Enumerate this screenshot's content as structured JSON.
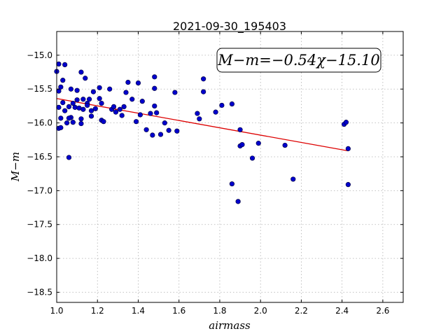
{
  "chart_data": {
    "type": "scatter",
    "title": "2021-09-30_195403",
    "xlabel": "airmass",
    "ylabel": "M−m",
    "xlim": [
      1.0,
      2.7
    ],
    "ylim": [
      -18.65,
      -14.65
    ],
    "y_inverted": true,
    "grid": true,
    "xticks": [
      1.0,
      1.2,
      1.4,
      1.6,
      1.8,
      2.0,
      2.2,
      2.4,
      2.6
    ],
    "xtick_labels": [
      "1.0",
      "1.2",
      "1.4",
      "1.6",
      "1.8",
      "2.0",
      "2.2",
      "2.4",
      "2.6"
    ],
    "yticks": [
      -15.0,
      -15.5,
      -16.0,
      -16.5,
      -17.0,
      -17.5,
      -18.0,
      -18.5
    ],
    "ytick_labels": [
      "−15.0",
      "−15.5",
      "−16.0",
      "−16.5",
      "−17.0",
      "−17.5",
      "−18.0",
      "−18.5"
    ],
    "annotation": "M−m=−0.54χ−15.10",
    "fit": {
      "slope": -0.54,
      "intercept": -15.1,
      "x_range": [
        1.0,
        2.43
      ],
      "color": "#dd0000"
    },
    "point_color": "#0000cc",
    "points": [
      [
        1.0,
        -15.24
      ],
      [
        1.01,
        -15.13
      ],
      [
        1.01,
        -15.53
      ],
      [
        1.02,
        -15.47
      ],
      [
        1.01,
        -16.08
      ],
      [
        1.02,
        -16.07
      ],
      [
        1.02,
        -15.93
      ],
      [
        1.03,
        -15.37
      ],
      [
        1.04,
        -15.14
      ],
      [
        1.03,
        -15.7
      ],
      [
        1.01,
        -15.77
      ],
      [
        1.04,
        -15.82
      ],
      [
        1.05,
        -16.0
      ],
      [
        1.06,
        -15.76
      ],
      [
        1.06,
        -16.51
      ],
      [
        1.07,
        -15.92
      ],
      [
        1.07,
        -15.5
      ],
      [
        1.08,
        -15.71
      ],
      [
        1.08,
        -15.99
      ],
      [
        1.06,
        -15.93
      ],
      [
        1.09,
        -15.77
      ],
      [
        1.1,
        -15.52
      ],
      [
        1.1,
        -15.66
      ],
      [
        1.11,
        -15.78
      ],
      [
        1.12,
        -15.94
      ],
      [
        1.12,
        -16.01
      ],
      [
        1.12,
        -15.25
      ],
      [
        1.13,
        -15.65
      ],
      [
        1.13,
        -15.8
      ],
      [
        1.14,
        -15.34
      ],
      [
        1.15,
        -15.71
      ],
      [
        1.15,
        -15.74
      ],
      [
        1.16,
        -15.65
      ],
      [
        1.17,
        -15.82
      ],
      [
        1.17,
        -15.9
      ],
      [
        1.18,
        -15.54
      ],
      [
        1.19,
        -15.79
      ],
      [
        1.21,
        -15.48
      ],
      [
        1.21,
        -15.64
      ],
      [
        1.22,
        -15.96
      ],
      [
        1.22,
        -15.71
      ],
      [
        1.23,
        -15.98
      ],
      [
        1.26,
        -15.5
      ],
      [
        1.27,
        -15.8
      ],
      [
        1.28,
        -15.76
      ],
      [
        1.29,
        -15.84
      ],
      [
        1.31,
        -15.8
      ],
      [
        1.32,
        -15.89
      ],
      [
        1.33,
        -15.76
      ],
      [
        1.34,
        -15.55
      ],
      [
        1.35,
        -15.4
      ],
      [
        1.37,
        -15.65
      ],
      [
        1.39,
        -15.98
      ],
      [
        1.4,
        -15.41
      ],
      [
        1.41,
        -15.88
      ],
      [
        1.42,
        -15.68
      ],
      [
        1.44,
        -16.1
      ],
      [
        1.46,
        -15.86
      ],
      [
        1.47,
        -16.18
      ],
      [
        1.48,
        -15.32
      ],
      [
        1.48,
        -15.49
      ],
      [
        1.48,
        -15.75
      ],
      [
        1.49,
        -15.85
      ],
      [
        1.51,
        -16.17
      ],
      [
        1.53,
        -16.0
      ],
      [
        1.55,
        -16.11
      ],
      [
        1.58,
        -15.55
      ],
      [
        1.59,
        -16.12
      ],
      [
        1.69,
        -15.86
      ],
      [
        1.7,
        -15.94
      ],
      [
        1.72,
        -15.35
      ],
      [
        1.72,
        -15.54
      ],
      [
        1.78,
        -15.84
      ],
      [
        1.81,
        -15.74
      ],
      [
        1.86,
        -15.72
      ],
      [
        1.86,
        -16.9
      ],
      [
        1.89,
        -17.16
      ],
      [
        1.9,
        -16.34
      ],
      [
        1.9,
        -16.1
      ],
      [
        1.91,
        -16.32
      ],
      [
        1.96,
        -16.52
      ],
      [
        1.99,
        -16.3
      ],
      [
        2.12,
        -16.33
      ],
      [
        2.16,
        -16.83
      ],
      [
        2.41,
        -16.02
      ],
      [
        2.42,
        -15.99
      ],
      [
        2.43,
        -16.38
      ],
      [
        2.43,
        -16.91
      ]
    ]
  }
}
